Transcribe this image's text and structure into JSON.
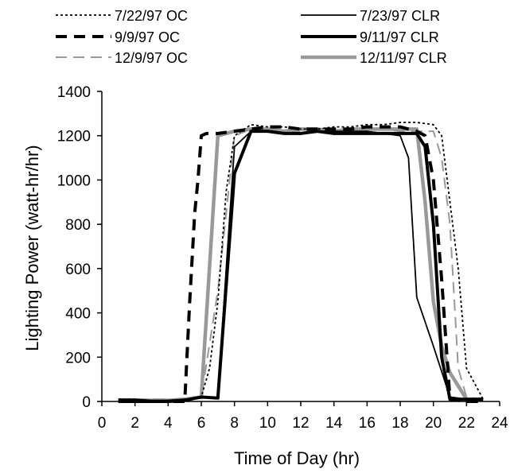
{
  "chart_data": {
    "type": "line",
    "xlabel": "Time of Day (hr)",
    "ylabel": "Lighting Power (watt-hr/hr)",
    "xlim": [
      0,
      24
    ],
    "ylim": [
      0,
      1400
    ],
    "xticks": [
      "0",
      "2",
      "4",
      "6",
      "8",
      "10",
      "12",
      "14",
      "16",
      "18",
      "20",
      "22",
      "24"
    ],
    "yticks": [
      "0",
      "200",
      "400",
      "600",
      "800",
      "1000",
      "1200",
      "1400"
    ],
    "grid": false,
    "legend_position": "top",
    "series": [
      {
        "name": "7/22/97 OC",
        "color": "#000000",
        "dash": "dotted",
        "width": "thin",
        "x": [
          1,
          2,
          3,
          4,
          5,
          6,
          6.5,
          7,
          7.5,
          8,
          9,
          10,
          11,
          12,
          13,
          14,
          15,
          16,
          17,
          18,
          19,
          20,
          20.5,
          21,
          21.5,
          22,
          23
        ],
        "y": [
          10,
          10,
          5,
          5,
          10,
          20,
          150,
          450,
          950,
          1200,
          1250,
          1240,
          1240,
          1230,
          1230,
          1240,
          1240,
          1250,
          1250,
          1260,
          1260,
          1250,
          1200,
          900,
          600,
          150,
          10
        ]
      },
      {
        "name": "7/23/97 CLR",
        "color": "#000000",
        "dash": "solid",
        "width": "thin",
        "x": [
          1,
          2,
          3,
          4,
          5,
          6,
          7,
          7.5,
          8,
          9,
          10,
          11,
          12,
          13,
          14,
          15,
          16,
          17,
          18,
          18.5,
          19,
          20,
          21,
          22,
          23
        ],
        "y": [
          10,
          10,
          5,
          5,
          10,
          15,
          20,
          600,
          1150,
          1220,
          1220,
          1210,
          1210,
          1220,
          1220,
          1220,
          1220,
          1210,
          1200,
          1100,
          470,
          250,
          20,
          10,
          10
        ]
      },
      {
        "name": "9/9/97 OC",
        "color": "#000000",
        "dash": "dashed",
        "width": "thick",
        "x": [
          1,
          2,
          3,
          4,
          5,
          5.3,
          5.6,
          5.8,
          6,
          6.3,
          7,
          8,
          9,
          10,
          11,
          12,
          13,
          14,
          15,
          16,
          17,
          18,
          19,
          19.5,
          20,
          20.5,
          21,
          22,
          23
        ],
        "y": [
          0,
          0,
          0,
          0,
          0,
          450,
          850,
          1000,
          1200,
          1210,
          1210,
          1220,
          1230,
          1240,
          1240,
          1230,
          1230,
          1230,
          1230,
          1240,
          1240,
          1240,
          1220,
          1200,
          1000,
          550,
          10,
          0,
          0
        ]
      },
      {
        "name": "9/11/97 CLR",
        "color": "#000000",
        "dash": "solid",
        "width": "thick",
        "x": [
          1,
          2,
          3,
          4,
          5,
          6,
          7,
          8,
          9,
          10,
          11,
          12,
          13,
          14,
          15,
          16,
          17,
          18,
          19,
          19.5,
          20,
          20.5,
          21,
          21.5,
          22,
          23
        ],
        "y": [
          0,
          0,
          0,
          0,
          5,
          20,
          15,
          1030,
          1220,
          1220,
          1210,
          1210,
          1220,
          1210,
          1210,
          1210,
          1210,
          1210,
          1210,
          1150,
          800,
          200,
          10,
          10,
          10,
          10
        ]
      },
      {
        "name": "12/9/97 OC",
        "color": "#999999",
        "dash": "dashed",
        "width": "thin",
        "x": [
          1,
          2,
          3,
          4,
          5,
          6,
          7,
          8,
          9,
          10,
          11,
          12,
          13,
          14,
          15,
          16,
          17,
          18,
          19,
          20,
          20.5,
          21,
          21.5,
          22,
          23
        ],
        "y": [
          10,
          10,
          10,
          10,
          10,
          20,
          500,
          1200,
          1230,
          1220,
          1220,
          1220,
          1230,
          1230,
          1230,
          1230,
          1230,
          1220,
          1220,
          1220,
          1100,
          800,
          150,
          20,
          10
        ]
      },
      {
        "name": "12/11/97 CLR",
        "color": "#999999",
        "dash": "solid",
        "width": "thick",
        "x": [
          1,
          2,
          3,
          4,
          5,
          6,
          7,
          8,
          9,
          10,
          11,
          12,
          13,
          14,
          15,
          16,
          17,
          18,
          19,
          19.5,
          20,
          20.5,
          21,
          22,
          23
        ],
        "y": [
          5,
          5,
          5,
          5,
          10,
          20,
          1200,
          1220,
          1230,
          1230,
          1220,
          1230,
          1230,
          1220,
          1230,
          1230,
          1230,
          1230,
          1230,
          900,
          450,
          250,
          130,
          10,
          10
        ]
      }
    ]
  }
}
